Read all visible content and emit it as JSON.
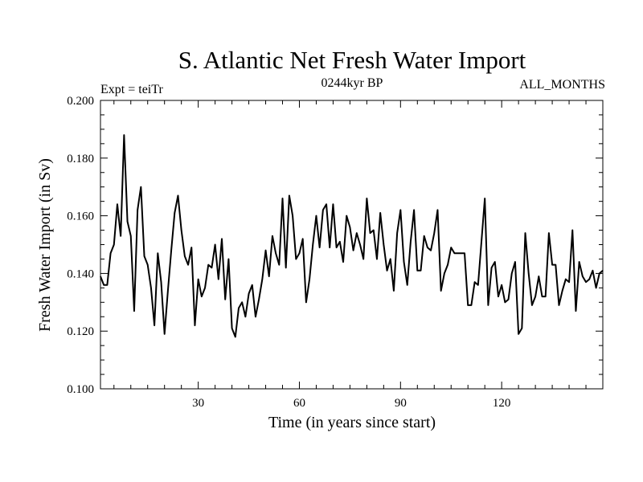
{
  "chart_data": {
    "type": "line",
    "title": "S. Atlantic Net Fresh Water Import",
    "subtitle_left": "Expt = teiTr",
    "subtitle_center": "0244kyr BP",
    "subtitle_right": "ALL_MONTHS",
    "xlabel": "Time (in years since start)",
    "ylabel": "Fresh Water Import (in Sv)",
    "xlim": [
      1,
      150
    ],
    "ylim": [
      0.1,
      0.2
    ],
    "xticks": [
      30,
      60,
      90,
      120
    ],
    "xtick_labels": [
      "30",
      "60",
      "90",
      "120"
    ],
    "yticks": [
      0.1,
      0.12,
      0.14,
      0.16,
      0.18,
      0.2
    ],
    "ytick_labels": [
      "0.100",
      "0.120",
      "0.140",
      "0.160",
      "0.180",
      "0.200"
    ],
    "grid": false,
    "series": [
      {
        "name": "Net Fresh Water Import",
        "color": "#000000",
        "x": [
          1,
          2,
          3,
          4,
          5,
          6,
          7,
          8,
          9,
          10,
          11,
          12,
          13,
          14,
          15,
          16,
          17,
          18,
          19,
          20,
          21,
          22,
          23,
          24,
          25,
          26,
          27,
          28,
          29,
          30,
          31,
          32,
          33,
          34,
          35,
          36,
          37,
          38,
          39,
          40,
          41,
          42,
          43,
          44,
          45,
          46,
          47,
          48,
          49,
          50,
          51,
          52,
          53,
          54,
          55,
          56,
          57,
          58,
          59,
          60,
          61,
          62,
          63,
          64,
          65,
          66,
          67,
          68,
          69,
          70,
          71,
          72,
          73,
          74,
          75,
          76,
          77,
          78,
          79,
          80,
          81,
          82,
          83,
          84,
          85,
          86,
          87,
          88,
          89,
          90,
          91,
          92,
          93,
          94,
          95,
          96,
          97,
          98,
          99,
          100,
          101,
          102,
          103,
          104,
          105,
          106,
          107,
          108,
          109,
          110,
          111,
          112,
          113,
          114,
          115,
          116,
          117,
          118,
          119,
          120,
          121,
          122,
          123,
          124,
          125,
          126,
          127,
          128,
          129,
          130,
          131,
          132,
          133,
          134,
          135,
          136,
          137,
          138,
          139,
          140,
          141,
          142,
          143,
          144,
          145,
          146,
          147,
          148,
          149,
          150
        ],
        "values": [
          0.139,
          0.136,
          0.136,
          0.147,
          0.15,
          0.164,
          0.153,
          0.188,
          0.158,
          0.153,
          0.127,
          0.162,
          0.17,
          0.146,
          0.143,
          0.135,
          0.122,
          0.147,
          0.137,
          0.119,
          0.134,
          0.148,
          0.161,
          0.167,
          0.155,
          0.146,
          0.143,
          0.149,
          0.122,
          0.138,
          0.132,
          0.135,
          0.143,
          0.142,
          0.15,
          0.138,
          0.152,
          0.131,
          0.145,
          0.121,
          0.118,
          0.128,
          0.13,
          0.125,
          0.133,
          0.136,
          0.125,
          0.131,
          0.138,
          0.148,
          0.139,
          0.153,
          0.147,
          0.143,
          0.166,
          0.142,
          0.167,
          0.16,
          0.145,
          0.147,
          0.152,
          0.13,
          0.138,
          0.15,
          0.16,
          0.149,
          0.162,
          0.164,
          0.149,
          0.164,
          0.149,
          0.151,
          0.144,
          0.16,
          0.156,
          0.148,
          0.154,
          0.15,
          0.145,
          0.166,
          0.154,
          0.155,
          0.145,
          0.161,
          0.15,
          0.141,
          0.145,
          0.134,
          0.154,
          0.162,
          0.144,
          0.136,
          0.151,
          0.162,
          0.141,
          0.141,
          0.153,
          0.149,
          0.148,
          0.154,
          0.162,
          0.134,
          0.14,
          0.143,
          0.149,
          0.147,
          0.147,
          0.147,
          0.147,
          0.129,
          0.129,
          0.137,
          0.136,
          0.151,
          0.166,
          0.129,
          0.142,
          0.144,
          0.132,
          0.136,
          0.13,
          0.131,
          0.14,
          0.144,
          0.119,
          0.121,
          0.154,
          0.14,
          0.129,
          0.132,
          0.139,
          0.132,
          0.132,
          0.154,
          0.143,
          0.143,
          0.129,
          0.134,
          0.138,
          0.137,
          0.155,
          0.127,
          0.144,
          0.139,
          0.137,
          0.138,
          0.141,
          0.135,
          0.14,
          0.141
        ]
      }
    ]
  }
}
